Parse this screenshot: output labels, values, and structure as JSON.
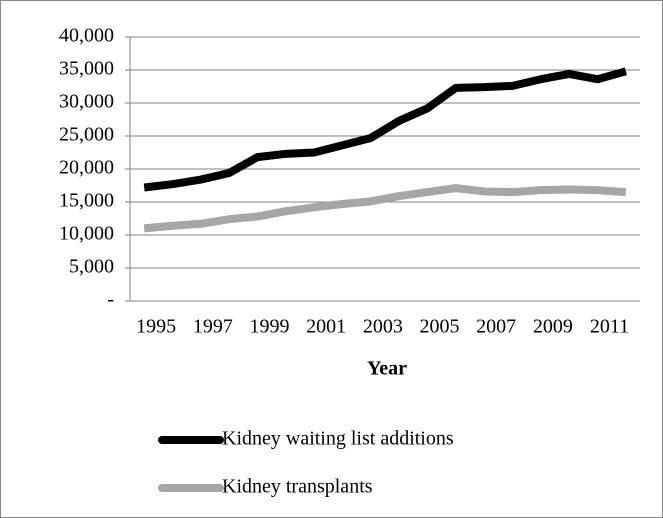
{
  "chart_data": {
    "type": "line",
    "x_label": "Year",
    "categories": [
      "1995",
      null,
      "1997",
      null,
      "1999",
      null,
      "2001",
      null,
      "2003",
      null,
      "2005",
      null,
      "2007",
      null,
      "2009",
      null,
      "2011",
      null
    ],
    "series": [
      {
        "name": "Kidney waiting list additions",
        "color": "#000000",
        "values": [
          17200,
          17700,
          18400,
          19400,
          21800,
          22300,
          22500,
          23600,
          24700,
          27300,
          29200,
          32300,
          32400,
          32600,
          33600,
          34400,
          33600,
          34800
        ]
      },
      {
        "name": "Kidney transplants",
        "color": "#a6a6a6",
        "values": [
          11000,
          11400,
          11700,
          12400,
          12800,
          13600,
          14200,
          14700,
          15100,
          15900,
          16500,
          17100,
          16600,
          16500,
          16800,
          16900,
          16800,
          16500
        ]
      }
    ],
    "ylim": [
      0,
      40000
    ],
    "yticks": [
      {
        "value": 0,
        "label": "-"
      },
      {
        "value": 5000,
        "label": "5,000"
      },
      {
        "value": 10000,
        "label": "10,000"
      },
      {
        "value": 15000,
        "label": "15,000"
      },
      {
        "value": 20000,
        "label": "20,000"
      },
      {
        "value": 25000,
        "label": "25,000"
      },
      {
        "value": 30000,
        "label": "30,000"
      },
      {
        "value": 35000,
        "label": "35,000"
      },
      {
        "value": 40000,
        "label": "40,000"
      }
    ],
    "grid": true,
    "legend": "bottom"
  }
}
